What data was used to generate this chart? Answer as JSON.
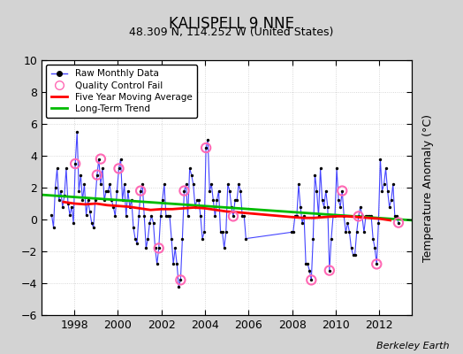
{
  "title": "KALISPELL 9 NNE",
  "subtitle": "48.309 N, 114.252 W (United States)",
  "ylabel": "Temperature Anomaly (°C)",
  "watermark": "Berkeley Earth",
  "xlim": [
    1996.5,
    2013.5
  ],
  "ylim": [
    -6,
    10
  ],
  "yticks": [
    -6,
    -4,
    -2,
    0,
    2,
    4,
    6,
    8,
    10
  ],
  "xticks": [
    1998,
    2000,
    2002,
    2004,
    2006,
    2008,
    2010,
    2012
  ],
  "bg_color": "#d3d3d3",
  "plot_bg_color": "#ffffff",
  "raw_color": "#4444ff",
  "raw_marker_color": "#000000",
  "qc_color": "#ff69b4",
  "moving_avg_color": "#ff0000",
  "trend_color": "#00bb00",
  "raw_data": {
    "times": [
      1996.958,
      1997.042,
      1997.125,
      1997.208,
      1997.292,
      1997.375,
      1997.458,
      1997.542,
      1997.625,
      1997.708,
      1997.792,
      1997.875,
      1997.958,
      1998.042,
      1998.125,
      1998.208,
      1998.292,
      1998.375,
      1998.458,
      1998.542,
      1998.625,
      1998.708,
      1998.792,
      1998.875,
      1998.958,
      1999.042,
      1999.125,
      1999.208,
      1999.292,
      1999.375,
      1999.458,
      1999.542,
      1999.625,
      1999.708,
      1999.792,
      1999.875,
      1999.958,
      2000.042,
      2000.125,
      2000.208,
      2000.292,
      2000.375,
      2000.458,
      2000.542,
      2000.625,
      2000.708,
      2000.792,
      2000.875,
      2000.958,
      2001.042,
      2001.125,
      2001.208,
      2001.292,
      2001.375,
      2001.458,
      2001.542,
      2001.625,
      2001.708,
      2001.792,
      2001.875,
      2001.958,
      2002.042,
      2002.125,
      2002.208,
      2002.292,
      2002.375,
      2002.458,
      2002.542,
      2002.625,
      2002.708,
      2002.792,
      2002.875,
      2002.958,
      2003.042,
      2003.125,
      2003.208,
      2003.292,
      2003.375,
      2003.458,
      2003.542,
      2003.625,
      2003.708,
      2003.792,
      2003.875,
      2003.958,
      2004.042,
      2004.125,
      2004.208,
      2004.292,
      2004.375,
      2004.458,
      2004.542,
      2004.625,
      2004.708,
      2004.792,
      2004.875,
      2004.958,
      2005.042,
      2005.125,
      2005.208,
      2005.292,
      2005.375,
      2005.458,
      2005.542,
      2005.625,
      2005.708,
      2005.792,
      2005.875,
      2007.958,
      2008.042,
      2008.125,
      2008.208,
      2008.292,
      2008.375,
      2008.458,
      2008.542,
      2008.625,
      2008.708,
      2008.792,
      2008.875,
      2008.958,
      2009.042,
      2009.125,
      2009.208,
      2009.292,
      2009.375,
      2009.458,
      2009.542,
      2009.625,
      2009.708,
      2009.792,
      2009.875,
      2009.958,
      2010.042,
      2010.125,
      2010.208,
      2010.292,
      2010.375,
      2010.458,
      2010.542,
      2010.625,
      2010.708,
      2010.792,
      2010.875,
      2010.958,
      2011.042,
      2011.125,
      2011.208,
      2011.292,
      2011.375,
      2011.458,
      2011.542,
      2011.625,
      2011.708,
      2011.792,
      2011.875,
      2011.958,
      2012.042,
      2012.125,
      2012.208,
      2012.292,
      2012.375,
      2012.458,
      2012.542,
      2012.625,
      2012.708,
      2012.792,
      2012.875
    ],
    "values": [
      0.3,
      -0.5,
      2.0,
      3.2,
      1.2,
      1.8,
      0.8,
      1.5,
      3.2,
      1.0,
      0.3,
      0.8,
      -0.2,
      3.5,
      5.5,
      1.8,
      2.8,
      1.2,
      2.2,
      0.3,
      1.2,
      0.5,
      -0.2,
      -0.5,
      1.2,
      2.8,
      3.8,
      2.2,
      3.2,
      1.2,
      1.8,
      1.8,
      2.2,
      1.2,
      0.8,
      0.2,
      1.8,
      3.2,
      3.8,
      1.2,
      2.2,
      0.2,
      1.8,
      0.8,
      1.2,
      -0.5,
      -1.2,
      -1.5,
      0.2,
      1.8,
      2.2,
      0.2,
      -1.8,
      -1.2,
      -0.2,
      0.2,
      -0.2,
      -1.8,
      -2.8,
      -1.8,
      0.2,
      1.2,
      2.2,
      0.2,
      0.2,
      0.2,
      -1.2,
      -2.8,
      -1.8,
      -2.8,
      -4.2,
      -3.8,
      -1.2,
      1.8,
      2.2,
      0.2,
      3.2,
      2.8,
      2.2,
      0.8,
      1.2,
      1.2,
      0.2,
      -1.2,
      -0.8,
      4.5,
      5.0,
      1.8,
      2.2,
      1.2,
      0.2,
      1.2,
      1.8,
      -0.8,
      -0.8,
      -1.8,
      -0.8,
      2.2,
      1.8,
      0.8,
      0.2,
      1.2,
      1.2,
      2.2,
      1.8,
      0.2,
      0.2,
      -1.2,
      -0.8,
      -0.8,
      0.2,
      0.2,
      2.2,
      0.8,
      -0.2,
      0.2,
      -2.8,
      -2.8,
      -3.2,
      -3.8,
      -1.2,
      2.8,
      1.8,
      0.2,
      3.2,
      1.2,
      0.8,
      1.8,
      0.8,
      -3.2,
      -1.2,
      0.2,
      0.2,
      3.2,
      1.2,
      0.8,
      1.8,
      0.2,
      -0.8,
      -0.2,
      -0.8,
      -1.8,
      -2.2,
      -2.2,
      -0.8,
      0.2,
      0.8,
      0.2,
      -0.8,
      0.2,
      0.2,
      0.2,
      0.2,
      -1.2,
      -1.8,
      -2.8,
      -0.2,
      3.8,
      1.8,
      2.2,
      3.2,
      1.8,
      0.8,
      1.2,
      2.2,
      0.2,
      0.2,
      -0.2
    ]
  },
  "qc_fail_points": {
    "times": [
      1998.042,
      1999.042,
      1999.208,
      2000.042,
      2001.042,
      2001.875,
      2002.875,
      2003.042,
      2004.042,
      2005.292,
      2008.875,
      2009.708,
      2010.292,
      2011.042,
      2011.875,
      2012.875
    ],
    "values": [
      3.5,
      2.8,
      3.8,
      3.2,
      1.8,
      -1.8,
      -3.8,
      1.8,
      4.5,
      0.2,
      -3.8,
      -3.2,
      1.8,
      0.2,
      -2.8,
      -0.2
    ]
  },
  "moving_avg": {
    "times": [
      1997.5,
      1998.0,
      1998.5,
      1999.0,
      1999.5,
      2000.0,
      2000.5,
      2001.0,
      2001.5,
      2002.0,
      2002.5,
      2003.0,
      2003.5,
      2004.0,
      2004.5,
      2005.0,
      2005.5,
      2008.0,
      2008.5,
      2009.0,
      2009.5,
      2010.0,
      2010.5,
      2011.0,
      2011.5,
      2012.0,
      2012.5
    ],
    "values": [
      1.1,
      1.0,
      0.95,
      1.0,
      0.9,
      0.85,
      0.8,
      0.7,
      0.6,
      0.65,
      0.65,
      0.7,
      0.75,
      0.7,
      0.6,
      0.5,
      0.45,
      0.15,
      0.1,
      0.1,
      0.15,
      0.2,
      0.2,
      0.15,
      0.1,
      0.05,
      -0.05
    ]
  },
  "trend": {
    "times": [
      1996.5,
      2013.5
    ],
    "values": [
      1.55,
      -0.05
    ]
  }
}
